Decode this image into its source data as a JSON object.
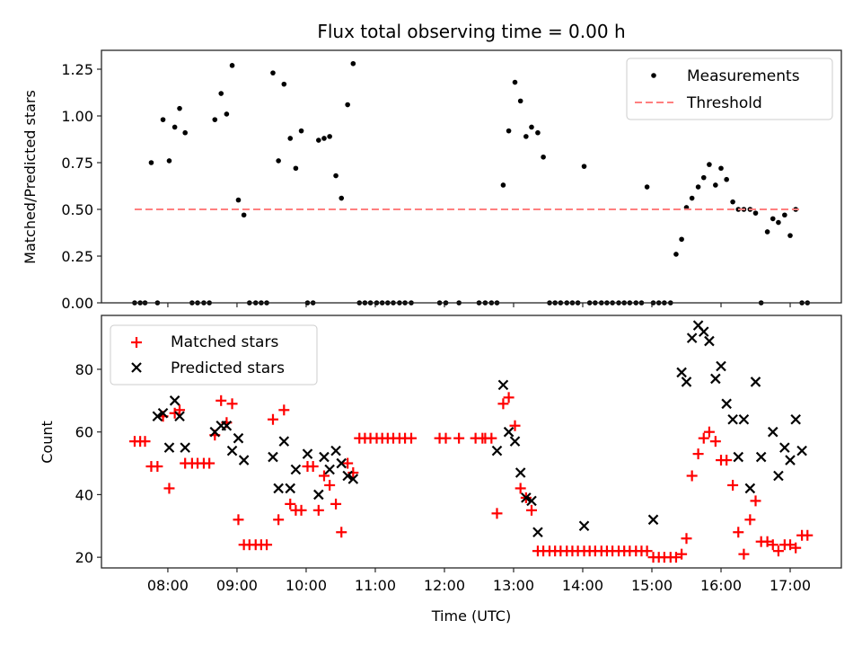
{
  "chart_data": [
    {
      "type": "scatter",
      "title": "Flux total observing time = 0.00 h",
      "xlabel": "",
      "ylabel": "Matched/Predicted stars",
      "xlim": [
        7.04,
        17.74
      ],
      "ylim": [
        0.0,
        1.351
      ],
      "yticks": [
        0.0,
        0.25,
        0.5,
        0.75,
        1.0,
        1.25
      ],
      "ytick_labels": [
        "0.00",
        "0.25",
        "0.50",
        "0.75",
        "1.00",
        "1.25"
      ],
      "xticks": [
        8,
        9,
        10,
        11,
        12,
        13,
        14,
        15,
        16,
        17
      ],
      "xtick_labels": [
        "08:00",
        "09:00",
        "10:00",
        "11:00",
        "12:00",
        "13:00",
        "14:00",
        "15:00",
        "16:00",
        "17:00"
      ],
      "show_xtick_labels": false,
      "grid": false,
      "legend": {
        "position": "top-right",
        "entries": [
          "Measurements",
          "Threshold"
        ]
      },
      "series": [
        {
          "name": "Measurements",
          "marker": "dot",
          "color": "#000000",
          "x": [
            7.52,
            7.6,
            7.67,
            7.76,
            7.85,
            7.93,
            8.02,
            8.1,
            8.17,
            8.25,
            8.35,
            8.43,
            8.52,
            8.6,
            8.68,
            8.77,
            8.85,
            8.93,
            9.02,
            9.1,
            9.18,
            9.27,
            9.35,
            9.43,
            9.52,
            9.6,
            9.68,
            9.77,
            9.85,
            10.1,
            9.93,
            10.02,
            10.18,
            10.26,
            10.34,
            10.43,
            10.51,
            10.6,
            10.68,
            10.77,
            10.85,
            10.93,
            11.02,
            11.1,
            11.18,
            11.26,
            11.35,
            11.43,
            11.52,
            11.93,
            12.02,
            12.21,
            12.5,
            12.59,
            12.68,
            12.76,
            12.85,
            12.93,
            13.02,
            13.1,
            13.18,
            13.26,
            13.35,
            13.43,
            13.52,
            13.6,
            13.68,
            13.77,
            13.85,
            13.93,
            14.02,
            14.1,
            14.18,
            14.27,
            14.35,
            14.43,
            14.52,
            14.6,
            14.68,
            14.77,
            14.85,
            14.93,
            15.02,
            15.1,
            15.18,
            15.27,
            15.35,
            15.43,
            15.5,
            15.58,
            15.67,
            15.75,
            15.83,
            15.92,
            16.0,
            16.08,
            16.17,
            16.25,
            16.33,
            16.42,
            16.5,
            16.58,
            16.67,
            16.75,
            16.83,
            16.92,
            17.0,
            17.08,
            17.17,
            17.25
          ],
          "y": [
            0.0,
            0.0,
            0.0,
            0.75,
            0.0,
            0.98,
            0.76,
            0.94,
            1.04,
            0.91,
            0.0,
            0.0,
            0.0,
            0.0,
            0.98,
            1.12,
            1.01,
            1.27,
            0.55,
            0.47,
            0.0,
            0.0,
            0.0,
            0.0,
            1.23,
            0.76,
            1.17,
            0.88,
            0.72,
            0.0,
            0.92,
            0.0,
            0.87,
            0.88,
            0.89,
            0.68,
            0.56,
            1.06,
            1.28,
            0.0,
            0.0,
            0.0,
            0.0,
            0.0,
            0.0,
            0.0,
            0.0,
            0.0,
            0.0,
            0.0,
            0.0,
            0.0,
            0.0,
            0.0,
            0.0,
            0.0,
            0.63,
            0.92,
            1.18,
            1.08,
            0.89,
            0.94,
            0.91,
            0.78,
            0.0,
            0.0,
            0.0,
            0.0,
            0.0,
            0.0,
            0.73,
            0.0,
            0.0,
            0.0,
            0.0,
            0.0,
            0.0,
            0.0,
            0.0,
            0.0,
            0.0,
            0.62,
            0.0,
            0.0,
            0.0,
            0.0,
            0.26,
            0.34,
            0.51,
            0.56,
            0.62,
            0.67,
            0.74,
            0.63,
            0.72,
            0.66,
            0.54,
            0.5,
            0.5,
            0.5,
            0.48,
            0.0,
            0.38,
            0.45,
            0.43,
            0.47,
            0.36,
            0.5,
            0.0,
            0.0
          ]
        },
        {
          "name": "Threshold",
          "marker": "dashed-line",
          "color": "#ff7f7f",
          "x": [
            7.52,
            17.17
          ],
          "y": [
            0.5,
            0.5
          ]
        }
      ]
    },
    {
      "type": "scatter",
      "title": "",
      "xlabel": "Time (UTC)",
      "ylabel": "Count",
      "xlim": [
        7.04,
        17.74
      ],
      "ylim": [
        16.6,
        97.2
      ],
      "yticks": [
        20,
        40,
        60,
        80
      ],
      "ytick_labels": [
        "20",
        "40",
        "60",
        "80"
      ],
      "xticks": [
        8,
        9,
        10,
        11,
        12,
        13,
        14,
        15,
        16,
        17
      ],
      "xtick_labels": [
        "08:00",
        "09:00",
        "10:00",
        "11:00",
        "12:00",
        "13:00",
        "14:00",
        "15:00",
        "16:00",
        "17:00"
      ],
      "show_xtick_labels": true,
      "grid": false,
      "legend": {
        "position": "top-left",
        "entries": [
          "Matched stars",
          "Predicted stars"
        ]
      },
      "series": [
        {
          "name": "Matched stars",
          "marker": "plus",
          "color": "#ff0000",
          "x": [
            7.52,
            7.6,
            7.67,
            7.76,
            7.85,
            7.93,
            8.02,
            8.1,
            8.17,
            8.25,
            8.35,
            8.43,
            8.52,
            8.6,
            8.68,
            8.77,
            8.85,
            8.93,
            9.02,
            9.1,
            9.18,
            9.27,
            9.35,
            9.43,
            9.52,
            9.6,
            9.68,
            9.77,
            9.85,
            9.93,
            10.02,
            10.1,
            10.18,
            10.26,
            10.34,
            10.43,
            10.51,
            10.6,
            10.68,
            10.77,
            10.85,
            10.93,
            11.02,
            11.1,
            11.18,
            11.26,
            11.35,
            11.43,
            11.52,
            11.93,
            12.02,
            12.21,
            12.45,
            12.55,
            12.59,
            12.68,
            12.76,
            12.85,
            12.93,
            13.02,
            13.1,
            13.18,
            13.26,
            13.35,
            13.43,
            13.52,
            13.6,
            13.68,
            13.77,
            13.85,
            13.93,
            14.02,
            14.1,
            14.18,
            14.27,
            14.35,
            14.43,
            14.52,
            14.6,
            14.68,
            14.77,
            14.85,
            14.93,
            15.02,
            15.1,
            15.18,
            15.27,
            15.35,
            15.43,
            15.5,
            15.58,
            15.67,
            15.75,
            15.83,
            15.92,
            16.0,
            16.08,
            16.17,
            16.25,
            16.33,
            16.42,
            16.5,
            16.58,
            16.67,
            16.75,
            16.83,
            16.92,
            17.0,
            17.08,
            17.17,
            17.25
          ],
          "y": [
            57,
            57,
            57,
            49,
            49,
            65,
            42,
            66,
            67,
            50,
            50,
            50,
            50,
            50,
            59,
            70,
            63,
            69,
            32,
            24,
            24,
            24,
            24,
            24,
            64,
            32,
            67,
            37,
            35,
            35,
            49,
            49,
            35,
            46,
            43,
            37,
            28,
            50,
            47,
            58,
            58,
            58,
            58,
            58,
            58,
            58,
            58,
            58,
            58,
            58,
            58,
            58,
            58,
            58,
            58,
            58,
            34,
            69,
            71,
            62,
            42,
            39,
            35,
            22,
            22,
            22,
            22,
            22,
            22,
            22,
            22,
            22,
            22,
            22,
            22,
            22,
            22,
            22,
            22,
            22,
            22,
            22,
            22,
            20,
            20,
            20,
            20,
            20,
            21,
            26,
            46,
            53,
            58,
            60,
            57,
            51,
            51,
            43,
            28,
            21,
            32,
            38,
            25,
            25,
            24,
            22,
            24,
            24,
            23,
            27,
            27
          ]
        },
        {
          "name": "Predicted stars",
          "marker": "x",
          "color": "#000000",
          "x": [
            7.85,
            7.93,
            8.02,
            8.1,
            8.17,
            8.25,
            8.68,
            8.77,
            8.85,
            8.93,
            9.02,
            9.1,
            9.52,
            9.6,
            9.68,
            9.77,
            9.85,
            10.02,
            10.18,
            10.26,
            10.34,
            10.43,
            10.51,
            10.6,
            10.68,
            12.76,
            12.85,
            12.93,
            13.02,
            13.1,
            13.18,
            13.26,
            13.35,
            14.02,
            15.02,
            15.43,
            15.5,
            15.58,
            15.67,
            15.75,
            15.83,
            15.92,
            16.0,
            16.08,
            16.17,
            16.25,
            16.33,
            16.42,
            16.5,
            16.58,
            16.75,
            16.83,
            16.92,
            17.0,
            17.08,
            17.17
          ],
          "y": [
            65,
            66,
            55,
            70,
            65,
            55,
            60,
            62,
            62,
            54,
            58,
            51,
            52,
            42,
            57,
            42,
            48,
            53,
            40,
            52,
            48,
            54,
            50,
            46,
            45,
            54,
            75,
            60,
            57,
            47,
            39,
            38,
            28,
            30,
            32,
            79,
            76,
            90,
            94,
            92,
            89,
            77,
            81,
            69,
            64,
            52,
            64,
            42,
            76,
            52,
            60,
            46,
            55,
            51,
            64,
            54
          ]
        }
      ]
    }
  ]
}
